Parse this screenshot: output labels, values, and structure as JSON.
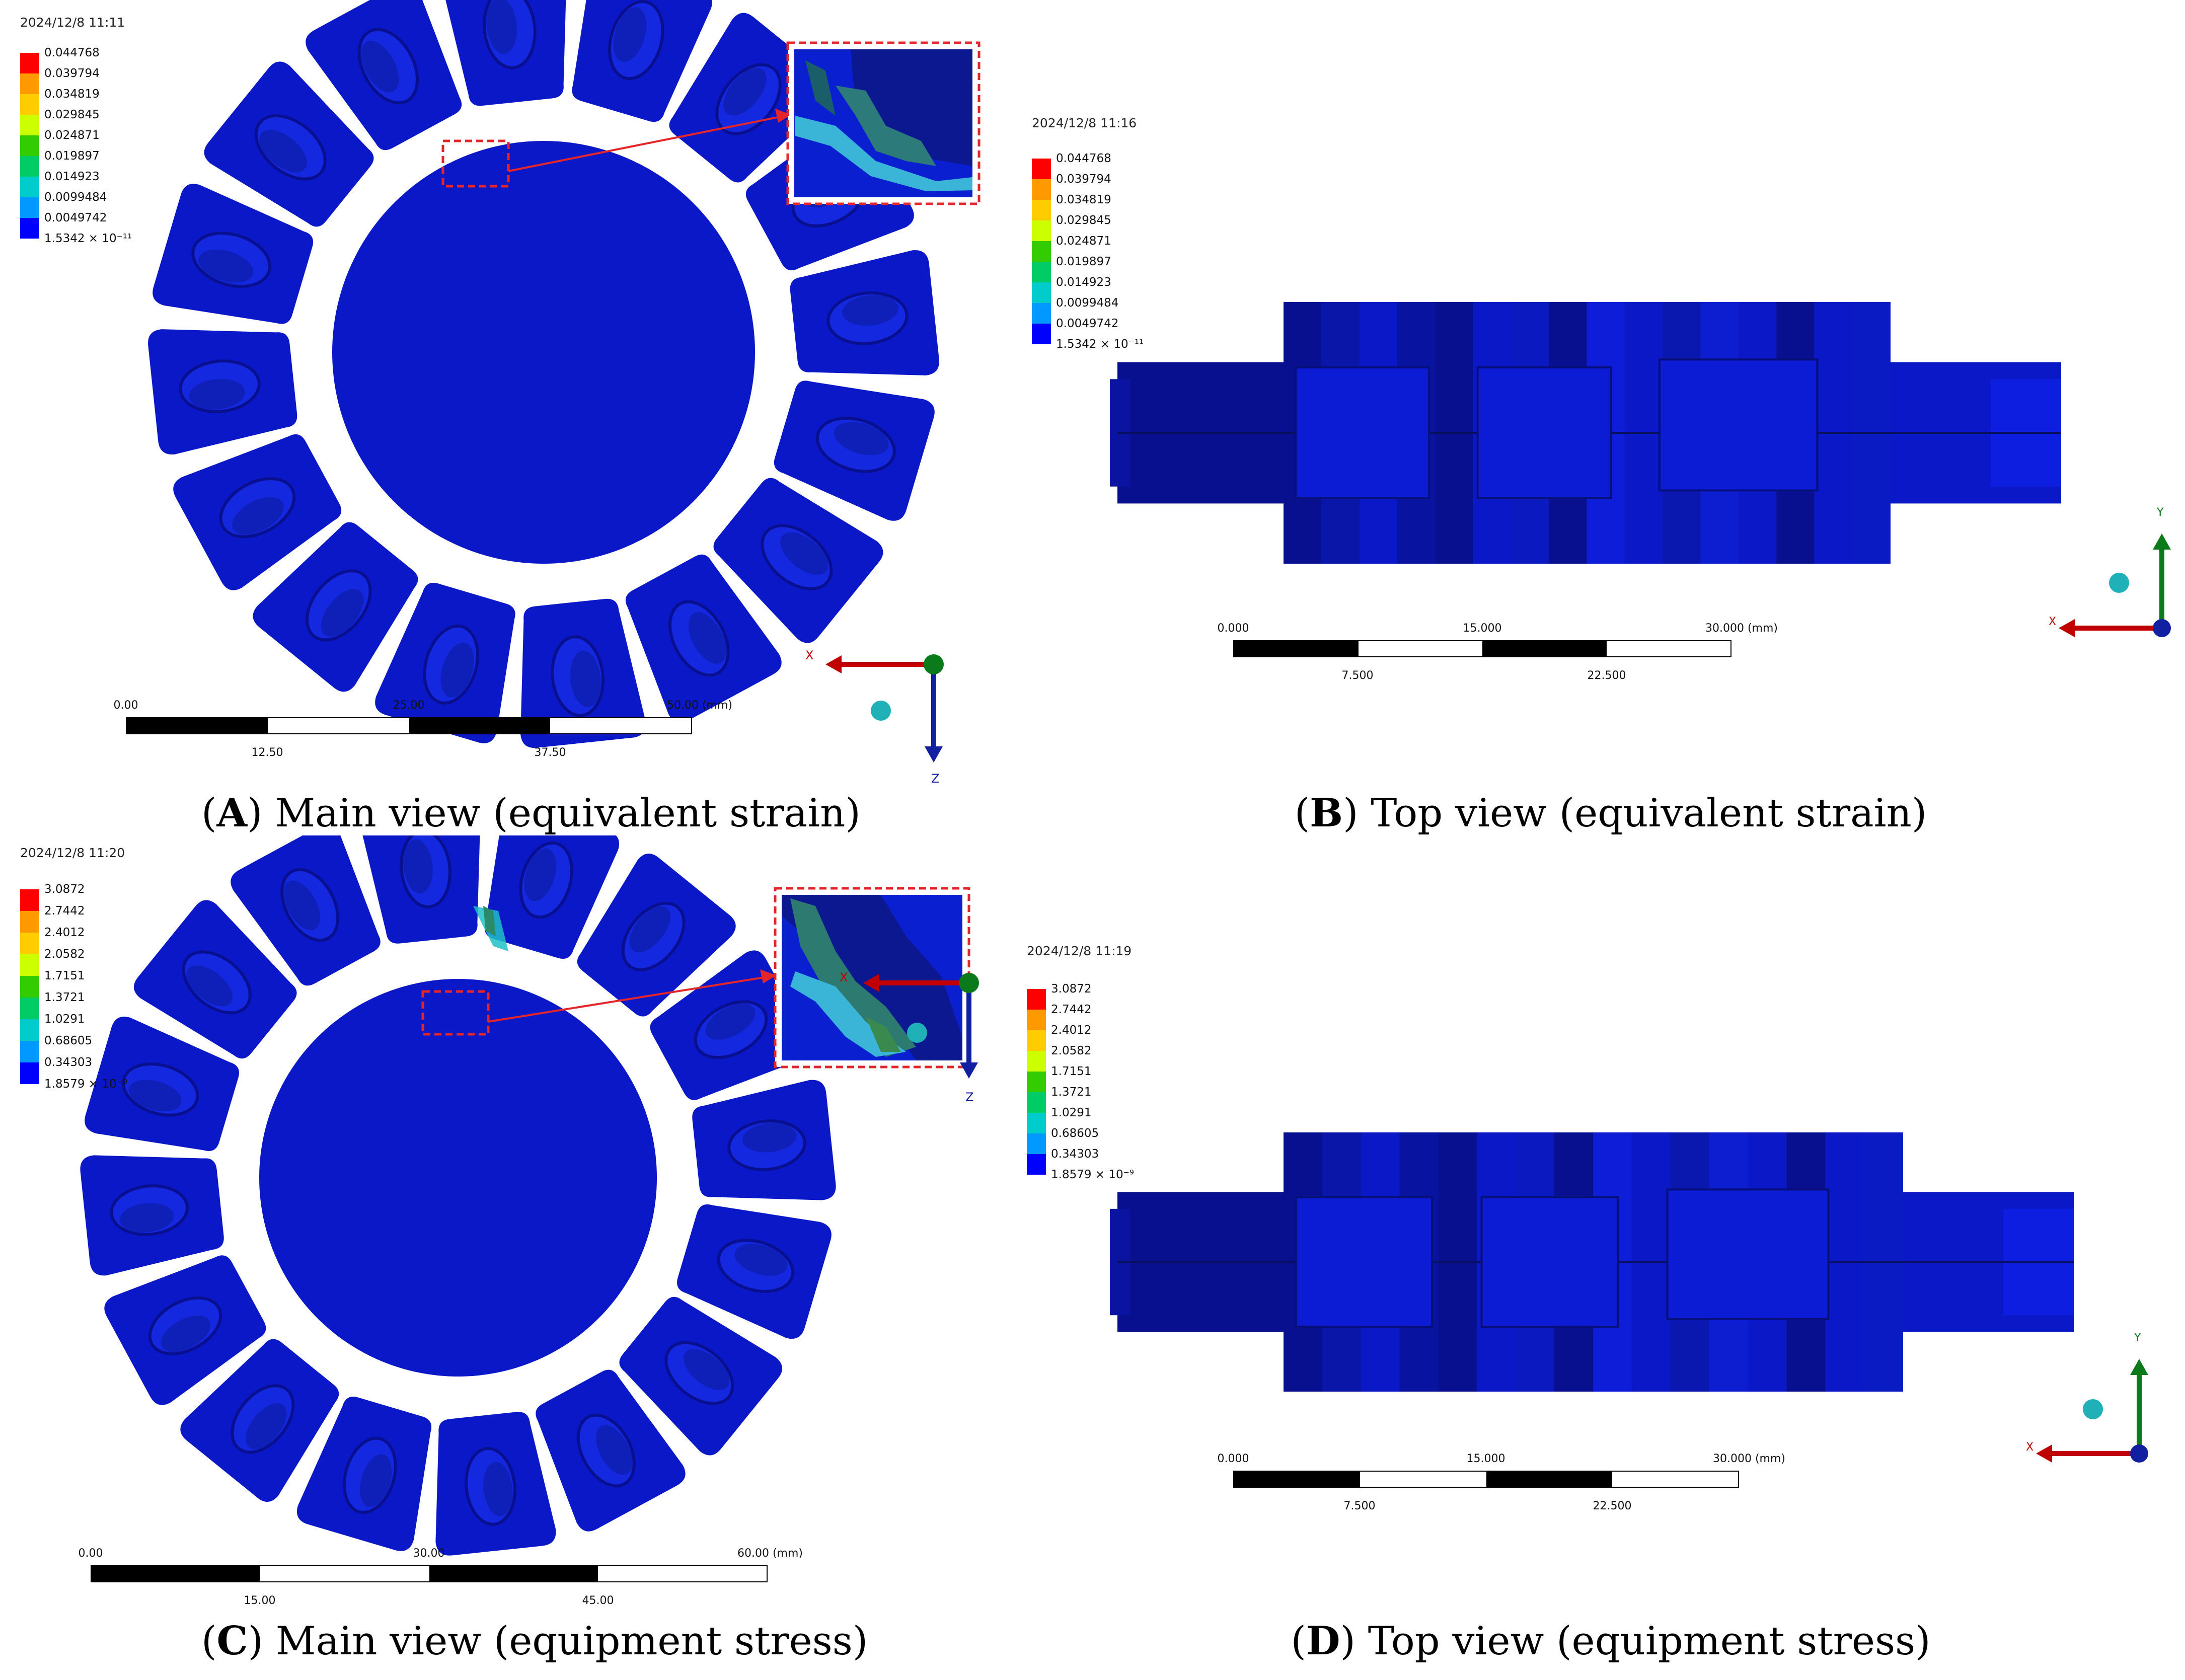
{
  "colors": {
    "model_blue": "#0b18c8",
    "model_dark": "#081090",
    "highlight_red": "#e4262b",
    "legend_scale": [
      "#ff0000",
      "#ff9900",
      "#ffcc00",
      "#ccff00",
      "#33cc00",
      "#00cc66",
      "#00cccc",
      "#0099ff",
      "#0000ff"
    ]
  },
  "panels": [
    {
      "id": "A",
      "timestamp": "2024/12/8 11:11",
      "legend": [
        "0.044768",
        "0.039794",
        "0.034819",
        "0.029845",
        "0.024871",
        "0.019897",
        "0.014923",
        "0.0099484",
        "0.0049742",
        "1.5342 × 10⁻¹¹"
      ],
      "scale_top": [
        "0.00",
        "25.00",
        "50.00 (mm)"
      ],
      "scale_bottom": [
        "12.50",
        "37.50"
      ],
      "caption_letter": "A",
      "caption_text": ") Main view (equivalent strain)",
      "axis_labels": [
        "X",
        "Z"
      ]
    },
    {
      "id": "B",
      "timestamp": "2024/12/8 11:16",
      "legend": [
        "0.044768",
        "0.039794",
        "0.034819",
        "0.029845",
        "0.024871",
        "0.019897",
        "0.014923",
        "0.0099484",
        "0.0049742",
        "1.5342 × 10⁻¹¹"
      ],
      "scale_top": [
        "0.000",
        "15.000",
        "30.000 (mm)"
      ],
      "scale_bottom": [
        "7.500",
        "22.500"
      ],
      "caption_letter": "B",
      "caption_text": ") Top view (equivalent strain)",
      "axis_labels": [
        "Y",
        "X"
      ]
    },
    {
      "id": "C",
      "timestamp": "2024/12/8 11:20",
      "legend": [
        "3.0872",
        "2.7442",
        "2.4012",
        "2.0582",
        "1.7151",
        "1.3721",
        "1.0291",
        "0.68605",
        "0.34303",
        "1.8579 × 10⁻⁹"
      ],
      "scale_top": [
        "0.00",
        "30.00",
        "60.00 (mm)"
      ],
      "scale_bottom": [
        "15.00",
        "45.00"
      ],
      "caption_letter": "C",
      "caption_text": ") Main view (equipment stress)",
      "axis_labels": [
        "X",
        "Z"
      ]
    },
    {
      "id": "D",
      "timestamp": "2024/12/8 11:19",
      "legend": [
        "3.0872",
        "2.7442",
        "2.4012",
        "2.0582",
        "1.7151",
        "1.3721",
        "1.0291",
        "0.68605",
        "0.34303",
        "1.8579 × 10⁻⁹"
      ],
      "scale_top": [
        "0.000",
        "15.000",
        "30.000 (mm)"
      ],
      "scale_bottom": [
        "7.500",
        "22.500"
      ],
      "caption_letter": "D",
      "caption_text": ") Top view (equipment stress)",
      "axis_labels": [
        "Y",
        "X"
      ]
    }
  ]
}
